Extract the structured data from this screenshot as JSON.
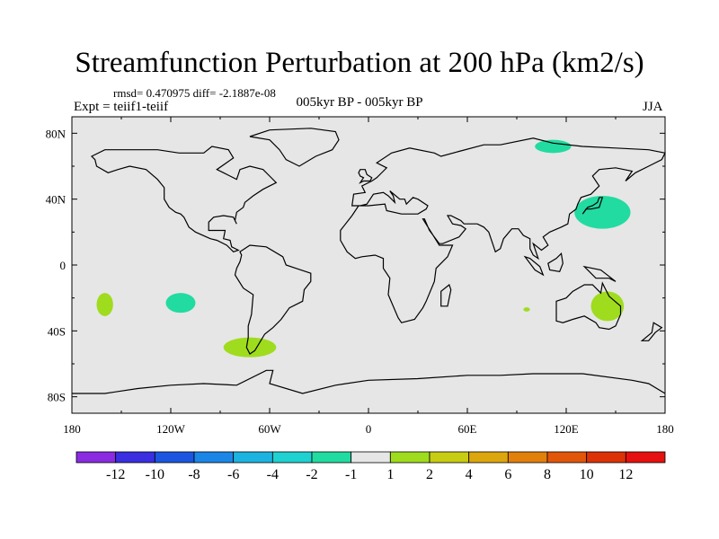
{
  "title": "Streamfunction Perturbation at 200 hPa (km2/s)",
  "stats": "rmsd= 0.470975 diff= -2.1887e-08",
  "expt": "Expt = teiif1-teiif",
  "period": "005kyr BP - 005kyr BP",
  "season": "JJA",
  "lat_ticks": [
    "80N",
    "40N",
    "0",
    "40S",
    "80S"
  ],
  "lon_ticks": [
    "180",
    "120W",
    "60W",
    "0",
    "60E",
    "120E",
    "180"
  ],
  "colorbar": {
    "labels": [
      "-12",
      "-10",
      "-8",
      "-6",
      "-4",
      "-2",
      "-1",
      "1",
      "2",
      "4",
      "6",
      "8",
      "10",
      "12"
    ],
    "colors": [
      "#8a2be2",
      "#3a2ee0",
      "#1a56e0",
      "#1c86e6",
      "#1db3e0",
      "#1fd1d1",
      "#22dba0",
      "#e6e6e6",
      "#9fdc1e",
      "#c8cc12",
      "#dca60e",
      "#e2800c",
      "#e2560a",
      "#dc3208",
      "#e61010"
    ]
  },
  "anomalies": [
    {
      "name": "arctic-siberia-anomaly",
      "lon": 112,
      "lat": 72,
      "rlon": 11,
      "rlat": 4,
      "color": "#22dba0"
    },
    {
      "name": "west-pacific-anomaly",
      "lon": 142,
      "lat": 32,
      "rlon": 17,
      "rlat": 10,
      "color": "#22dba0"
    },
    {
      "name": "australia-anomaly",
      "lon": 145,
      "lat": -25,
      "rlon": 10,
      "rlat": 9,
      "color": "#9fdc1e"
    },
    {
      "name": "indian-ocean-anomaly",
      "lon": 96,
      "lat": -27,
      "rlon": 2,
      "rlat": 1.3,
      "color": "#9fdc1e"
    },
    {
      "name": "south-pacific-west-anomaly",
      "lon": -160,
      "lat": -24,
      "rlon": 5,
      "rlat": 7,
      "color": "#9fdc1e"
    },
    {
      "name": "south-pacific-central-anomaly",
      "lon": -114,
      "lat": -23,
      "rlon": 9,
      "rlat": 6,
      "color": "#22dba0"
    },
    {
      "name": "drake-passage-anomaly",
      "lon": -72,
      "lat": -50,
      "rlon": 16,
      "rlat": 6,
      "color": "#9fdc1e"
    }
  ]
}
